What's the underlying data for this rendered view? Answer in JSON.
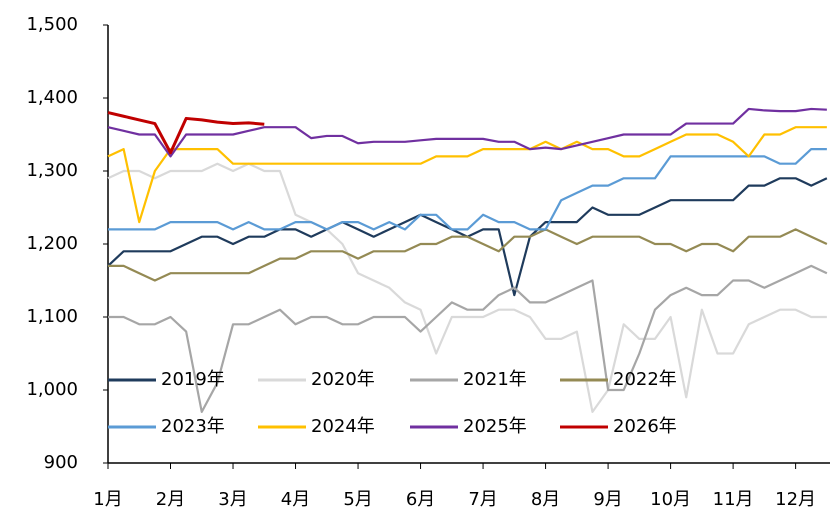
{
  "chart_data": {
    "type": "line",
    "x": [
      1,
      1.25,
      1.5,
      1.75,
      2,
      2.25,
      2.5,
      2.75,
      3,
      3.25,
      3.5,
      3.75,
      4,
      4.25,
      4.5,
      4.75,
      5,
      5.25,
      5.5,
      5.75,
      6,
      6.25,
      6.5,
      6.75,
      7,
      7.25,
      7.5,
      7.75,
      8,
      8.25,
      8.5,
      8.75,
      9,
      9.25,
      9.5,
      9.75,
      10,
      10.25,
      10.5,
      10.75,
      11,
      11.25,
      11.5,
      11.75,
      12,
      12.25,
      12.5
    ],
    "xlim": [
      1,
      12.55
    ],
    "xticks": [
      {
        "value": 1,
        "label": "1月"
      },
      {
        "value": 2,
        "label": "2月"
      },
      {
        "value": 3,
        "label": "3月"
      },
      {
        "value": 4,
        "label": "4月"
      },
      {
        "value": 5,
        "label": "5月"
      },
      {
        "value": 6,
        "label": "6月"
      },
      {
        "value": 7,
        "label": "7月"
      },
      {
        "value": 8,
        "label": "8月"
      },
      {
        "value": 9,
        "label": "9月"
      },
      {
        "value": 10,
        "label": "10月"
      },
      {
        "value": 11,
        "label": "11月"
      },
      {
        "value": 12,
        "label": "12月"
      }
    ],
    "ylim": [
      900,
      1500
    ],
    "yticks": [
      {
        "value": 900,
        "label": "900"
      },
      {
        "value": 1000,
        "label": "1,000"
      },
      {
        "value": 1100,
        "label": "1,100"
      },
      {
        "value": 1200,
        "label": "1,200"
      },
      {
        "value": 1300,
        "label": "1,300"
      },
      {
        "value": 1400,
        "label": "1,400"
      },
      {
        "value": 1500,
        "label": "1,500"
      }
    ],
    "series": [
      {
        "name": "2019年",
        "color": "#1f3b5c",
        "values": [
          1170,
          1190,
          1190,
          1190,
          1190,
          1200,
          1210,
          1210,
          1200,
          1210,
          1210,
          1220,
          1220,
          1210,
          1220,
          1230,
          1220,
          1210,
          1220,
          1230,
          1240,
          1230,
          1220,
          1210,
          1220,
          1220,
          1130,
          1210,
          1230,
          1230,
          1230,
          1250,
          1240,
          1240,
          1240,
          1250,
          1260,
          1260,
          1260,
          1260,
          1260,
          1280,
          1280,
          1290,
          1290,
          1280,
          1290
        ]
      },
      {
        "name": "2020年",
        "color": "#d9d9d9",
        "values": [
          1290,
          1300,
          1300,
          1290,
          1300,
          1300,
          1300,
          1310,
          1300,
          1310,
          1300,
          1300,
          1240,
          1230,
          1220,
          1200,
          1160,
          1150,
          1140,
          1120,
          1110,
          1050,
          1100,
          1100,
          1100,
          1110,
          1110,
          1100,
          1070,
          1070,
          1080,
          970,
          1000,
          1090,
          1070,
          1070,
          1100,
          990,
          1110,
          1050,
          1050,
          1090,
          1100,
          1110,
          1110,
          1100,
          1100
        ]
      },
      {
        "name": "2021年",
        "color": "#a6a6a6",
        "values": [
          1100,
          1100,
          1090,
          1090,
          1100,
          1080,
          970,
          1010,
          1090,
          1090,
          1100,
          1110,
          1090,
          1100,
          1100,
          1090,
          1090,
          1100,
          1100,
          1100,
          1080,
          1100,
          1120,
          1110,
          1110,
          1130,
          1140,
          1120,
          1120,
          1130,
          1140,
          1150,
          1000,
          1000,
          1050,
          1110,
          1130,
          1140,
          1130,
          1130,
          1150,
          1150,
          1140,
          1150,
          1160,
          1170,
          1160
        ]
      },
      {
        "name": "2022年",
        "color": "#948a54",
        "values": [
          1170,
          1170,
          1160,
          1150,
          1160,
          1160,
          1160,
          1160,
          1160,
          1160,
          1170,
          1180,
          1180,
          1190,
          1190,
          1190,
          1180,
          1190,
          1190,
          1190,
          1200,
          1200,
          1210,
          1210,
          1200,
          1190,
          1210,
          1210,
          1220,
          1210,
          1200,
          1210,
          1210,
          1210,
          1210,
          1200,
          1200,
          1190,
          1200,
          1200,
          1190,
          1210,
          1210,
          1210,
          1220,
          1210,
          1200
        ]
      },
      {
        "name": "2023年",
        "color": "#5b9bd5",
        "values": [
          1220,
          1220,
          1220,
          1220,
          1230,
          1230,
          1230,
          1230,
          1220,
          1230,
          1220,
          1220,
          1230,
          1230,
          1220,
          1230,
          1230,
          1220,
          1230,
          1220,
          1240,
          1240,
          1220,
          1220,
          1240,
          1230,
          1230,
          1220,
          1220,
          1260,
          1270,
          1280,
          1280,
          1290,
          1290,
          1290,
          1320,
          1320,
          1320,
          1320,
          1320,
          1320,
          1320,
          1310,
          1310,
          1330,
          1330
        ]
      },
      {
        "name": "2024年",
        "color": "#ffc000",
        "values": [
          1320,
          1330,
          1230,
          1300,
          1330,
          1330,
          1330,
          1330,
          1310,
          1310,
          1310,
          1310,
          1310,
          1310,
          1310,
          1310,
          1310,
          1310,
          1310,
          1310,
          1310,
          1320,
          1320,
          1320,
          1330,
          1330,
          1330,
          1330,
          1340,
          1330,
          1340,
          1330,
          1330,
          1320,
          1320,
          1330,
          1340,
          1350,
          1350,
          1350,
          1340,
          1320,
          1350,
          1350,
          1360,
          1360,
          1360
        ]
      },
      {
        "name": "2025年",
        "color": "#7030a0",
        "values": [
          1360,
          1355,
          1350,
          1350,
          1320,
          1350,
          1350,
          1350,
          1350,
          1355,
          1360,
          1360,
          1360,
          1345,
          1348,
          1348,
          1338,
          1340,
          1340,
          1340,
          1342,
          1344,
          1344,
          1344,
          1344,
          1340,
          1340,
          1330,
          1332,
          1330,
          1335,
          1340,
          1345,
          1350,
          1350,
          1350,
          1350,
          1365,
          1365,
          1365,
          1365,
          1385,
          1383,
          1382,
          1382,
          1385,
          1384
        ]
      },
      {
        "name": "2026年",
        "color": "#c00000",
        "values": [
          1380,
          1375,
          1370,
          1365,
          1325,
          1372,
          1370,
          1367,
          1365,
          1366,
          1364,
          null,
          null,
          null,
          null,
          null,
          null,
          null,
          null,
          null,
          null,
          null,
          null,
          null,
          null,
          null,
          null,
          null,
          null,
          null,
          null,
          null,
          null,
          null,
          null,
          null,
          null,
          null,
          null,
          null,
          null,
          null,
          null,
          null,
          null,
          null,
          null
        ]
      }
    ]
  }
}
